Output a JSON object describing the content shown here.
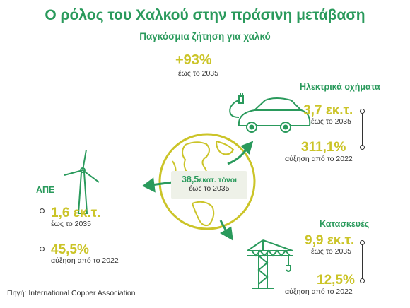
{
  "title": "Ο ρόλος του Χαλκού στην πράσινη μετάβαση",
  "subtitle": "Παγκόσμια ζήτηση για χαλκό",
  "total": {
    "value": "+93%",
    "note": "έως το 2035"
  },
  "center": {
    "value": "38,5",
    "unit": "εκατ. τόνοι",
    "note": "έως το 2035"
  },
  "ev": {
    "label": "Ηλεκτρικά οχήματα",
    "value1": "3,7 εκ.τ.",
    "note1": "έως το 2035",
    "value2": "311,1%",
    "note2": "αύξηση από το 2022"
  },
  "renewables": {
    "label": "ΑΠΕ",
    "value1": "1,6 εκ.τ.",
    "note1": "έως το 2035",
    "value2": "45,5%",
    "note2": "αύξηση από το 2022"
  },
  "construction": {
    "label": "Κατασκευές",
    "value1": "9,9 εκ.τ.",
    "note1": "έως το 2035",
    "value2": "12,5%",
    "note2": "αύξηση από το 2022"
  },
  "source": "Πηγή: International Copper Association",
  "colors": {
    "green": "#2a9a5c",
    "yellow": "#cbc428",
    "center_bg": "#eef1e8"
  },
  "icons": [
    "globe-icon",
    "electric-car-icon",
    "wind-turbine-icon",
    "crane-icon"
  ]
}
